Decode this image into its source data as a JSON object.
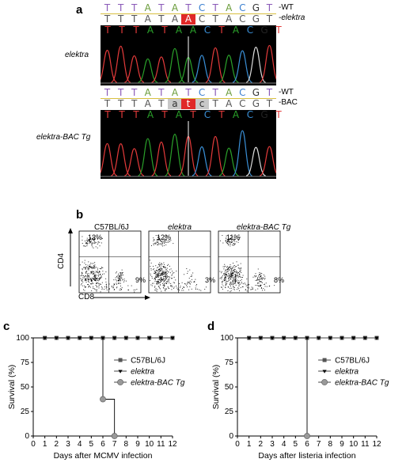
{
  "panel_a": {
    "letter": "a",
    "top": {
      "label": "elektra",
      "ref_seq": [
        "T",
        "T",
        "T",
        "A",
        "T",
        "A",
        "T",
        "C",
        "T",
        "A",
        "C",
        "G",
        "T"
      ],
      "alt_seq": [
        "T",
        "T",
        "T",
        "A",
        "T",
        "A",
        "A",
        "C",
        "T",
        "A",
        "C",
        "G",
        "T"
      ],
      "trace_seq": [
        "T",
        "T",
        "T",
        "A",
        "T",
        "A",
        "A",
        "C",
        "T",
        "A",
        "C",
        "G",
        "T"
      ],
      "ref_tag": "-WT",
      "alt_tag": "-elektra",
      "highlight_index": 6
    },
    "bottom": {
      "label": "elektra-BAC Tg",
      "ref_seq": [
        "T",
        "T",
        "T",
        "A",
        "T",
        "A",
        "T",
        "C",
        "T",
        "A",
        "C",
        "G",
        "T"
      ],
      "alt_seq": [
        "T",
        "T",
        "T",
        "A",
        "T",
        "a",
        "t",
        "c",
        "T",
        "A",
        "C",
        "G",
        "T"
      ],
      "trace_seq": [
        "T",
        "T",
        "T",
        "A",
        "T",
        "A",
        "T",
        "C",
        "T",
        "A",
        "C",
        "G",
        "T"
      ],
      "ref_tag": "-WT",
      "alt_tag": "-BAC",
      "highlight_index": 6,
      "lower_case_indices": [
        5,
        6,
        7
      ]
    },
    "colors": {
      "T": "#e33a3a",
      "A": "#2aa02a",
      "C": "#3a8fd6",
      "G": "#222222",
      "ref_T": "#8a5ab8",
      "ref_A": "#6a9c3a",
      "ref_C": "#3a7fd0",
      "ref_G": "#333333",
      "highlight": "#e02828",
      "trace_bg": "#000000"
    }
  },
  "panel_b": {
    "letter": "b",
    "plots": [
      {
        "title": "C57BL/6J",
        "italic": false,
        "cd4_pct": "12%",
        "cd8_pct": "9%"
      },
      {
        "title": "elektra",
        "italic": true,
        "cd4_pct": "12%",
        "cd8_pct": "3%"
      },
      {
        "title": "elektra-BAC Tg",
        "italic": true,
        "cd4_pct": "11%",
        "cd8_pct": "8%"
      }
    ],
    "x_axis": "CD8",
    "y_axis": "CD4"
  },
  "chart_data": [
    {
      "panel": "c",
      "type": "line",
      "xlabel": "Days after MCMV infection",
      "ylabel": "Survival (%)",
      "xlim": [
        0,
        12
      ],
      "ylim": [
        0,
        100
      ],
      "x_ticks": [
        0,
        1,
        2,
        3,
        4,
        5,
        6,
        7,
        8,
        9,
        10,
        11,
        12
      ],
      "y_ticks": [
        0,
        25,
        50,
        75,
        100
      ],
      "series": [
        {
          "name": "C57BL/6J",
          "marker": "square",
          "color": "#555555",
          "x": [
            1,
            2,
            3,
            4,
            5,
            6,
            7,
            8,
            9,
            10,
            11,
            12
          ],
          "y": [
            100,
            100,
            100,
            100,
            100,
            100,
            100,
            100,
            100,
            100,
            100,
            100
          ]
        },
        {
          "name": "elektra",
          "marker": "triangle-down",
          "color": "#000000",
          "x": [
            1,
            2,
            3,
            4,
            5,
            6,
            7,
            8,
            9,
            10,
            11,
            12
          ],
          "y": [
            100,
            100,
            100,
            100,
            100,
            100,
            100,
            100,
            100,
            100,
            100,
            100
          ]
        },
        {
          "name": "elektra-BAC Tg",
          "marker": "circle",
          "color": "#999999",
          "x": [
            0,
            6,
            6,
            7,
            7
          ],
          "y": [
            100,
            100,
            37.5,
            37.5,
            0
          ],
          "marker_points": [
            [
              6,
              37.5
            ],
            [
              7,
              0
            ]
          ]
        }
      ],
      "legend_position": "right"
    },
    {
      "panel": "d",
      "type": "line",
      "xlabel": "Days after listeria infection",
      "ylabel": "Survival (%)",
      "xlim": [
        0,
        12
      ],
      "ylim": [
        0,
        100
      ],
      "x_ticks": [
        0,
        1,
        2,
        3,
        4,
        5,
        6,
        7,
        8,
        9,
        10,
        11,
        12
      ],
      "y_ticks": [
        0,
        25,
        50,
        75,
        100
      ],
      "series": [
        {
          "name": "C57BL/6J",
          "marker": "square",
          "color": "#555555",
          "x": [
            1,
            2,
            3,
            4,
            5,
            6,
            7,
            8,
            9,
            10,
            11,
            12
          ],
          "y": [
            100,
            100,
            100,
            100,
            100,
            100,
            100,
            100,
            100,
            100,
            100,
            100
          ]
        },
        {
          "name": "elektra",
          "marker": "triangle-down",
          "color": "#000000",
          "x": [
            1,
            2,
            3,
            4,
            5,
            6,
            7,
            8,
            9,
            10,
            11,
            12
          ],
          "y": [
            100,
            100,
            100,
            100,
            100,
            100,
            100,
            100,
            100,
            100,
            100,
            100
          ]
        },
        {
          "name": "elektra-BAC Tg",
          "marker": "circle",
          "color": "#999999",
          "x": [
            0,
            6,
            6
          ],
          "y": [
            100,
            100,
            0
          ],
          "marker_points": [
            [
              6,
              0
            ]
          ]
        }
      ],
      "legend_position": "right"
    }
  ],
  "panel_letters": {
    "c": "c",
    "d": "d"
  }
}
